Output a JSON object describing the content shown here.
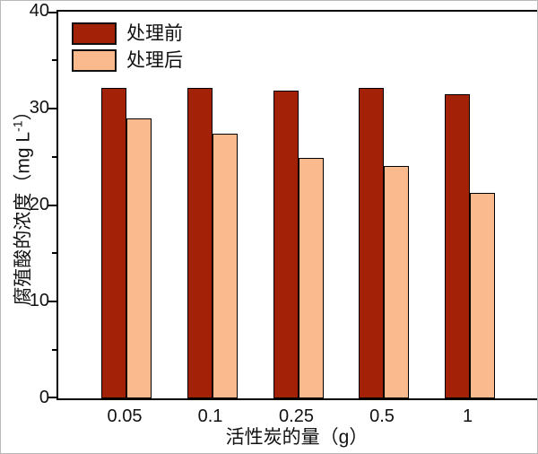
{
  "chart_data": {
    "type": "bar",
    "categories": [
      "0.05",
      "0.1",
      "0.25",
      "0.5",
      "1"
    ],
    "series": [
      {
        "name": "处理前",
        "color": "#A32107",
        "values": [
          32.1,
          32.1,
          31.8,
          32.1,
          31.5
        ]
      },
      {
        "name": "处理后",
        "color": "#FABA8E",
        "values": [
          29.0,
          27.4,
          24.9,
          24.0,
          21.3
        ]
      }
    ],
    "title": "",
    "xlabel": "活性炭的量（g）",
    "ylabel": "腐殖酸的浓度（mg L⁻¹）",
    "ylabel_prefix": "腐殖酸的浓度（mg L",
    "ylabel_sup": "-1",
    "ylabel_suffix": "）",
    "ylim": [
      0,
      40
    ],
    "yticks_major": [
      0,
      10,
      20,
      30,
      40
    ],
    "yticks_minor": [
      5,
      15,
      25,
      35
    ],
    "grid": "off",
    "legend_position": "top-left-inside",
    "axis_color": "#000000",
    "background_color": "#ffffff"
  }
}
